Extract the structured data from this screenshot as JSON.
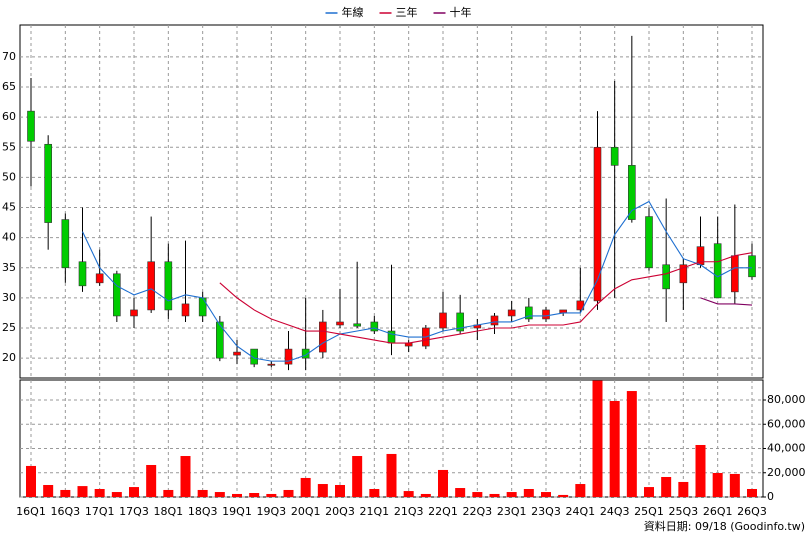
{
  "chart_data": [
    {
      "type": "candlestick",
      "legend": "top",
      "grid": true,
      "colors": {
        "up": "#ff0000",
        "down": "#00cc00"
      },
      "categories": [
        "16Q1",
        null,
        "16Q3",
        null,
        "17Q1",
        null,
        "17Q3",
        null,
        "18Q1",
        null,
        "18Q3",
        null,
        "19Q1",
        null,
        "19Q3",
        null,
        "20Q1",
        null,
        "20Q3",
        null,
        "21Q1",
        null,
        "21Q3",
        null,
        "22Q1",
        null,
        "22Q3",
        null,
        "23Q1",
        null,
        "23Q3",
        null,
        "24Q1",
        null,
        "24Q3",
        null,
        "25Q1",
        null,
        "25Q3",
        null,
        "26Q1",
        null,
        "26Q3"
      ],
      "open": [
        61,
        55.5,
        43,
        36,
        32.5,
        34,
        27,
        28,
        36,
        27,
        30,
        26,
        20.5,
        21.5,
        18.8,
        19,
        21.5,
        21,
        25.5,
        25.7,
        26,
        24.5,
        22,
        22,
        25,
        27.5,
        25,
        25.5,
        27,
        28.5,
        26.5,
        27.5,
        28,
        29.5,
        55,
        52,
        43.5,
        35.5,
        32.5,
        35.5,
        39,
        31,
        37
      ],
      "high": [
        66.5,
        57,
        44,
        45,
        38,
        34.5,
        30,
        43.5,
        39,
        39.5,
        31,
        27,
        23,
        21.5,
        19.5,
        24.5,
        30,
        28,
        31.5,
        36,
        27,
        35.5,
        23,
        25.5,
        31,
        30.5,
        26.5,
        27.5,
        29.5,
        30,
        28.5,
        28,
        35,
        61,
        66,
        73.5,
        45,
        46.5,
        36.5,
        43.5,
        43.5,
        45.5,
        39
      ],
      "low": [
        48.5,
        38,
        32.5,
        31,
        32,
        26,
        25,
        27.5,
        26.5,
        26,
        26,
        19.5,
        19,
        18.5,
        18.5,
        18,
        18,
        20,
        25,
        25,
        24,
        20.5,
        21,
        21.5,
        24.5,
        24,
        23,
        24,
        26,
        26,
        26,
        27,
        27.5,
        28,
        30,
        42.5,
        34.5,
        26,
        28,
        35,
        30,
        29,
        33
      ],
      "close": [
        56,
        42.5,
        35,
        32,
        34,
        27,
        28,
        36,
        28,
        29,
        27,
        20,
        21,
        19,
        19,
        21.5,
        20,
        26,
        26,
        25.3,
        24.5,
        22.5,
        22.5,
        25,
        27.5,
        24.5,
        25.5,
        27,
        28,
        26.5,
        28,
        28,
        29.5,
        55,
        52,
        43,
        35,
        31.5,
        35.5,
        38.5,
        30,
        37,
        33.5
      ],
      "series": [
        {
          "name": "年線",
          "color": "#1e6fd0",
          "values": [
            null,
            null,
            null,
            41,
            35,
            32,
            30.5,
            31.5,
            29.5,
            30.5,
            30,
            25.5,
            22,
            20,
            19.5,
            19.5,
            20.5,
            22.5,
            24,
            24.5,
            25,
            24,
            23.5,
            23.5,
            24.5,
            25,
            25.5,
            26,
            26,
            27,
            27,
            27.5,
            27.5,
            33,
            40.5,
            44.5,
            46,
            41,
            36.5,
            35.5,
            33.5,
            35,
            35
          ]
        },
        {
          "name": "三年",
          "color": "#cc0033",
          "values": [
            null,
            null,
            null,
            null,
            null,
            null,
            null,
            null,
            null,
            null,
            null,
            32.5,
            30,
            28,
            26.5,
            25.5,
            24.5,
            24.5,
            24,
            23.5,
            23,
            22.5,
            22.5,
            23,
            23.5,
            24,
            24.5,
            25,
            25,
            25.5,
            25.5,
            25.5,
            26,
            29,
            31.5,
            33,
            33.5,
            34,
            35,
            36,
            36,
            37,
            37.5
          ]
        },
        {
          "name": "十年",
          "color": "#800060",
          "values": [
            null,
            null,
            null,
            null,
            null,
            null,
            null,
            null,
            null,
            null,
            null,
            null,
            null,
            null,
            null,
            null,
            null,
            null,
            null,
            null,
            null,
            null,
            null,
            null,
            null,
            null,
            null,
            null,
            null,
            null,
            null,
            null,
            null,
            null,
            null,
            null,
            null,
            null,
            null,
            30,
            29,
            29,
            28.8
          ]
        }
      ],
      "ylim": [
        16.7,
        75.3
      ],
      "yticks": [
        20,
        25,
        30,
        35,
        40,
        45,
        50,
        55,
        60,
        65,
        70
      ]
    },
    {
      "type": "bar",
      "grid": true,
      "color": "#ff0000",
      "values": [
        25600,
        9900,
        5800,
        9000,
        6600,
        4100,
        8200,
        26400,
        5800,
        33800,
        5800,
        4100,
        2500,
        3300,
        2500,
        5800,
        15700,
        10700,
        9900,
        33800,
        6600,
        35500,
        4900,
        2500,
        22300,
        7400,
        4100,
        2500,
        4100,
        6600,
        4100,
        1700,
        10700,
        96000,
        79200,
        87400,
        8200,
        16500,
        12400,
        42900,
        19800,
        19000,
        6600
      ],
      "ylim": [
        0,
        96500
      ],
      "yticks": [
        0,
        {
          "value": 20000,
          "label": "20,000"
        },
        {
          "value": 40000,
          "label": "40,000"
        },
        {
          "value": 60000,
          "label": "60,000"
        },
        {
          "value": 80000,
          "label": "80,000"
        }
      ]
    }
  ],
  "footer": "資料日期: 09/18 (Goodinfo.tw)"
}
